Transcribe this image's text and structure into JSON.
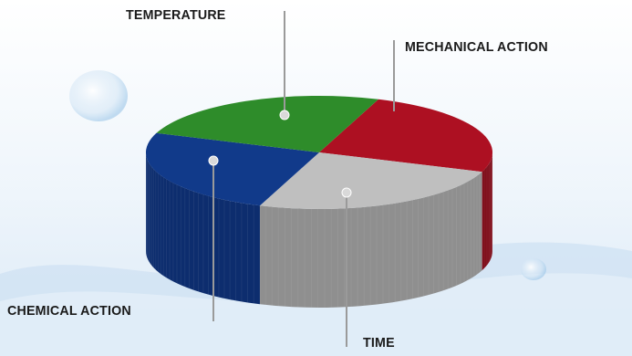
{
  "diagram": {
    "segments": [
      {
        "label": "TEMPERATURE",
        "share": 0.25,
        "color": "#ad1022",
        "side": "#7e0c19"
      },
      {
        "label": "MECHANICAL ACTION",
        "share": 0.25,
        "color": "#bfbfbf",
        "side": "#8f8f8f"
      },
      {
        "label": "TIME",
        "share": 0.25,
        "color": "#113a8a",
        "side": "#0d2d6e"
      },
      {
        "label": "CHEMICAL ACTION",
        "share": 0.25,
        "color": "#2e8c2a",
        "side": "#226b20"
      }
    ],
    "pointer_color": "#9a9a9a",
    "marker_color": "#d9d9d9"
  }
}
